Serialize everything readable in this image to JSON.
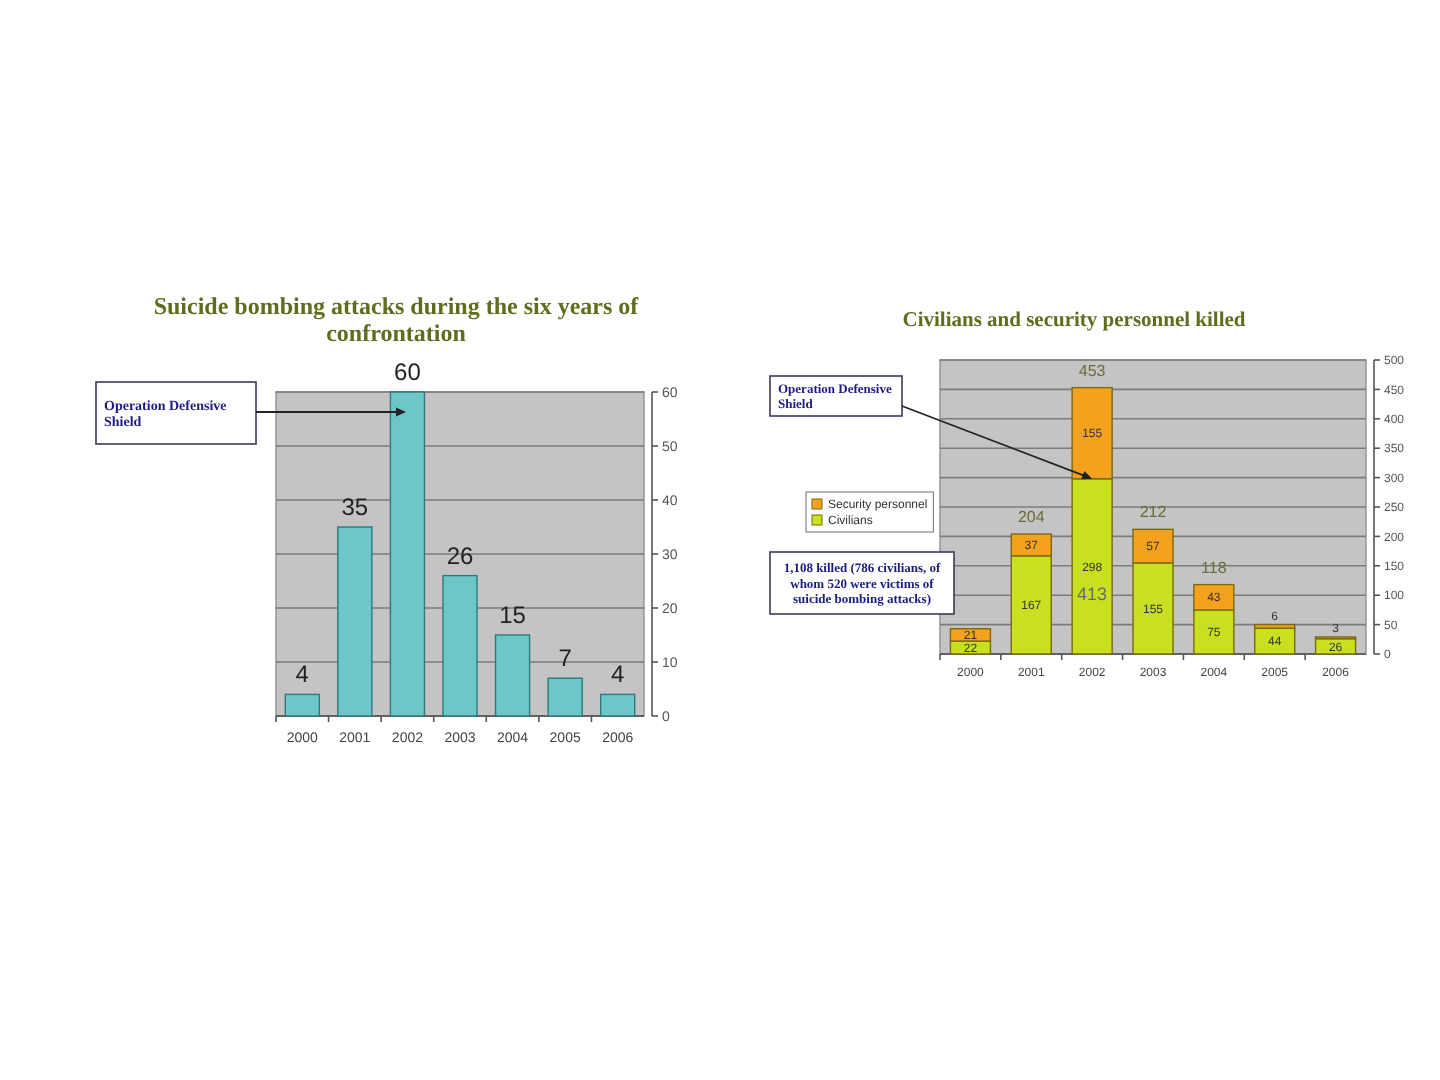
{
  "chart_data": [
    {
      "type": "bar",
      "title": "Suicide bombing attacks during the six years of confrontation",
      "categories": [
        "2000",
        "2001",
        "2002",
        "2003",
        "2004",
        "2005",
        "2006"
      ],
      "values": [
        4,
        35,
        60,
        26,
        15,
        7,
        4
      ],
      "color": "#6cc8c8",
      "ylim": [
        0,
        60
      ],
      "yticks": [
        0,
        10,
        20,
        30,
        40,
        50,
        60
      ],
      "grid": "y",
      "data_labels": true,
      "annotations": [
        "Operation Defensive Shield"
      ]
    },
    {
      "type": "bar",
      "stacked": true,
      "title": "Civilians and security personnel killed",
      "categories": [
        "2000",
        "2001",
        "2002",
        "2003",
        "2004",
        "2005",
        "2006"
      ],
      "series": [
        {
          "name": "Civilians",
          "color": "#c8e020",
          "values": [
            22,
            167,
            298,
            155,
            75,
            44,
            26
          ]
        },
        {
          "name": "Security personnel",
          "color": "#f4a21e",
          "values": [
            21,
            37,
            155,
            57,
            43,
            6,
            3
          ]
        }
      ],
      "ylim": [
        0,
        500
      ],
      "yticks": [
        0,
        50,
        100,
        150,
        200,
        250,
        300,
        350,
        400,
        450,
        500
      ],
      "grid": "y",
      "legend": "left",
      "data_labels": true,
      "totals": [
        null,
        "204",
        "453",
        "212",
        "118",
        null,
        null
      ],
      "annotations": [
        {
          "text": "Operation Defensive Shield",
          "x": "2002",
          "y": 298
        },
        "1,108 killed (786 civilians, of whom 520 were victims of suicide bombing attacks)",
        "413"
      ]
    }
  ]
}
